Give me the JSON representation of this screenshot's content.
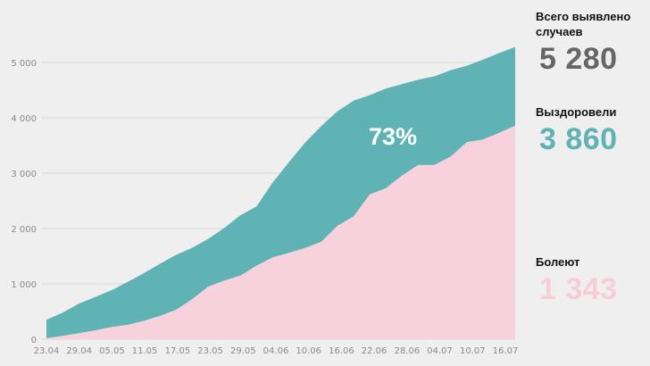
{
  "stats": {
    "total_label_line1": "Всего выявлено",
    "total_label_line2": "случаев",
    "total_value": "5 280",
    "recovered_label": "Выздоровели",
    "recovered_value": "3 860",
    "sick_label": "Болеют",
    "sick_value": "1 343"
  },
  "colors": {
    "background": "#efefef",
    "total_area": "#5fb3b4",
    "recovered_area": "#f7d2dc",
    "total_text": "#666666",
    "recovered_text": "#5fb3b4",
    "sick_text": "#f7cdd8"
  },
  "chart_data": {
    "type": "area",
    "annotation": "73%",
    "ylim": [
      0,
      5300
    ],
    "yticks": [
      0,
      1000,
      2000,
      3000,
      4000,
      5000
    ],
    "ytick_labels": [
      "0",
      "1 000",
      "2 000",
      "3 000",
      "4 000",
      "5 000"
    ],
    "xtick_labels": [
      "23.04",
      "29.04",
      "05.05",
      "11.05",
      "17.05",
      "23.05",
      "29.05",
      "04.06",
      "10.06",
      "16.06",
      "22.06",
      "28.06",
      "04.07",
      "10.07",
      "16.07"
    ],
    "x": [
      "23.04",
      "26.04",
      "29.04",
      "02.05",
      "05.05",
      "08.05",
      "11.05",
      "14.05",
      "17.05",
      "20.05",
      "23.05",
      "26.05",
      "29.05",
      "01.06",
      "04.06",
      "07.06",
      "10.06",
      "13.06",
      "16.06",
      "19.06",
      "22.06",
      "25.06",
      "28.06",
      "01.07",
      "04.07",
      "07.07",
      "10.07",
      "13.07",
      "16.07",
      "18.07"
    ],
    "series": [
      {
        "name": "Всего выявлено случаев",
        "color": "#5fb3b4",
        "values": [
          350,
          480,
          640,
          760,
          880,
          1030,
          1190,
          1360,
          1520,
          1650,
          1810,
          2010,
          2240,
          2400,
          2830,
          3200,
          3550,
          3850,
          4120,
          4310,
          4410,
          4530,
          4610,
          4690,
          4750,
          4860,
          4940,
          5050,
          5170,
          5280
        ]
      },
      {
        "name": "Выздоровели",
        "color": "#f7d2dc",
        "values": [
          20,
          60,
          110,
          160,
          220,
          260,
          330,
          420,
          530,
          720,
          950,
          1060,
          1150,
          1330,
          1480,
          1560,
          1650,
          1760,
          2050,
          2220,
          2620,
          2730,
          2960,
          3150,
          3150,
          3300,
          3560,
          3610,
          3730,
          3860
        ]
      }
    ]
  }
}
